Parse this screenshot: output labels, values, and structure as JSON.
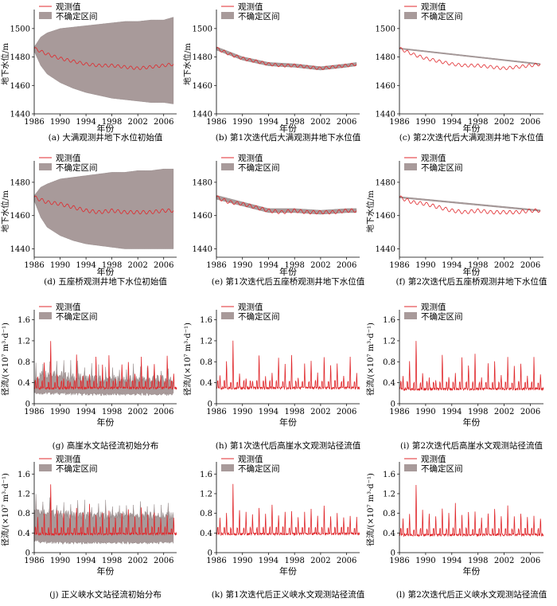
{
  "figure": {
    "legend_observed": "观测值",
    "legend_band": "不确定区间",
    "xlabel": "年份",
    "colors": {
      "observed": "#e0282c",
      "band": "#a89a9a",
      "axis": "#000000"
    }
  },
  "chart_data": [
    {
      "type": "line",
      "panel": "a",
      "caption": "(a) 大满观测井地下水位初始值",
      "ylabel": "地下水位/m",
      "xlim": [
        1986,
        2008
      ],
      "ylim": [
        1440,
        1510
      ],
      "xticks": [
        "1986",
        "1990",
        "1994",
        "1998",
        "2002",
        "2006"
      ],
      "yticks": [
        "1440",
        "1460",
        "1480",
        "1500"
      ],
      "series": [
        {
          "name": "观测值",
          "x": [
            1986,
            1988,
            1990,
            1992,
            1994,
            1996,
            1998,
            2000,
            2002,
            2004,
            2006,
            2007.5
          ],
          "values": [
            1486,
            1482,
            1479,
            1477,
            1475,
            1474,
            1474,
            1473,
            1472,
            1473,
            1474,
            1475
          ]
        },
        {
          "name": "不确定区间",
          "x": [
            1986,
            1987,
            1988,
            1990,
            1992,
            1994,
            1996,
            1998,
            2000,
            2002,
            2004,
            2006,
            2007.5
          ],
          "lower": [
            1484,
            1474,
            1468,
            1462,
            1458,
            1455,
            1453,
            1451,
            1450,
            1449,
            1448,
            1448,
            1447
          ],
          "upper": [
            1487,
            1494,
            1497,
            1500,
            1501,
            1502,
            1503,
            1504,
            1505,
            1505,
            1506,
            1506,
            1508
          ]
        }
      ]
    },
    {
      "type": "line",
      "panel": "b",
      "caption": "(b) 第1次迭代后大满观测井地下水位值",
      "ylabel": "地下水位/m",
      "xlim": [
        1986,
        2008
      ],
      "ylim": [
        1440,
        1510
      ],
      "xticks": [
        "1986",
        "1990",
        "1994",
        "1998",
        "2002",
        "2006"
      ],
      "yticks": [
        "1440",
        "1460",
        "1480",
        "1500"
      ],
      "series": [
        {
          "name": "观测值",
          "x": [
            1986,
            1988,
            1990,
            1992,
            1994,
            1996,
            1998,
            2000,
            2002,
            2004,
            2006,
            2007.5
          ],
          "values": [
            1486,
            1482,
            1479,
            1477,
            1475,
            1474,
            1474,
            1473,
            1472,
            1473,
            1474,
            1475
          ]
        },
        {
          "name": "不确定区间",
          "x": [
            1986,
            1990,
            1994,
            1998,
            2002,
            2006,
            2007.5
          ],
          "lower": [
            1484.8,
            1477.8,
            1473.8,
            1472.8,
            1470.8,
            1472.8,
            1473.8
          ],
          "upper": [
            1487.2,
            1480.2,
            1476.2,
            1475.2,
            1473.2,
            1475.2,
            1476.2
          ]
        }
      ]
    },
    {
      "type": "line",
      "panel": "c",
      "caption": "(c) 第2次迭代后大满观测井地下水位值",
      "ylabel": "",
      "xlim": [
        1986,
        2008
      ],
      "ylim": [
        1440,
        1510
      ],
      "xticks": [
        "1986",
        "1990",
        "1994",
        "1998",
        "2002",
        "2006"
      ],
      "yticks": [
        "1440",
        "1460",
        "1480",
        "1500"
      ],
      "series": [
        {
          "name": "观测值",
          "x": [
            1986,
            1988,
            1990,
            1992,
            1994,
            1996,
            1998,
            2000,
            2002,
            2004,
            2006,
            2007.5
          ],
          "values": [
            1486,
            1482,
            1479,
            1477,
            1475,
            1474,
            1474,
            1473,
            1472,
            1473,
            1474,
            1475
          ]
        },
        {
          "name": "不确定区间",
          "x": [
            1986,
            2007.5
          ],
          "lower": [
            1485.6,
            1474.6
          ],
          "upper": [
            1486.4,
            1475.4
          ]
        }
      ]
    },
    {
      "type": "line",
      "panel": "d",
      "caption": "(d) 五座桥观测井地下水位初始值",
      "ylabel": "地下水位/m",
      "xlim": [
        1986,
        2008
      ],
      "ylim": [
        1435,
        1490
      ],
      "xticks": [
        "1986",
        "1990",
        "1994",
        "1998",
        "2002",
        "2006"
      ],
      "yticks": [
        "1440",
        "1460",
        "1480"
      ],
      "series": [
        {
          "name": "观测值",
          "x": [
            1986,
            1988,
            1990,
            1992,
            1994,
            1996,
            1998,
            2000,
            2002,
            2004,
            2006,
            2007.5
          ],
          "values": [
            1471,
            1468,
            1467,
            1465,
            1463,
            1462,
            1463,
            1462,
            1462,
            1462,
            1463,
            1463
          ]
        },
        {
          "name": "不确定区间",
          "x": [
            1986,
            1987,
            1988,
            1990,
            1992,
            1994,
            1996,
            1998,
            2000,
            2002,
            2004,
            2006,
            2007.5
          ],
          "lower": [
            1469,
            1459,
            1453,
            1448,
            1445,
            1443,
            1442,
            1441,
            1440,
            1440,
            1440,
            1440,
            1440
          ],
          "upper": [
            1472,
            1477,
            1479,
            1482,
            1483,
            1484,
            1485,
            1486,
            1486,
            1487,
            1487,
            1488,
            1488
          ]
        }
      ]
    },
    {
      "type": "line",
      "panel": "e",
      "caption": "(e) 第1次迭代后五座桥观测井地下水位值",
      "ylabel": "",
      "xlim": [
        1986,
        2008
      ],
      "ylim": [
        1435,
        1490
      ],
      "xticks": [
        "1986",
        "1990",
        "1994",
        "1998",
        "2002",
        "2006"
      ],
      "yticks": [
        "1440",
        "1460",
        "1480"
      ],
      "series": [
        {
          "name": "观测值",
          "x": [
            1986,
            1988,
            1990,
            1992,
            1994,
            1996,
            1998,
            2000,
            2002,
            2004,
            2006,
            2007.5
          ],
          "values": [
            1471,
            1468,
            1467,
            1465,
            1463,
            1462,
            1463,
            1462,
            1462,
            1462,
            1463,
            1463
          ]
        },
        {
          "name": "不确定区间",
          "x": [
            1986,
            1990,
            1994,
            1998,
            2002,
            2006,
            2007.5
          ],
          "lower": [
            1469.8,
            1465.8,
            1461.8,
            1461.8,
            1460.8,
            1461.8,
            1461.8
          ],
          "upper": [
            1472.2,
            1468.2,
            1464.2,
            1464.2,
            1463.2,
            1464.2,
            1464.2
          ]
        }
      ]
    },
    {
      "type": "line",
      "panel": "f",
      "caption": "(f) 第2次迭代后五座桥观测井地下水位值",
      "ylabel": "地下水位/m",
      "xlim": [
        1986,
        2008
      ],
      "ylim": [
        1435,
        1490
      ],
      "xticks": [
        "1986",
        "1990",
        "1994",
        "1998",
        "2002",
        "2006"
      ],
      "yticks": [
        "1440",
        "1460",
        "1480"
      ],
      "series": [
        {
          "name": "观测值",
          "x": [
            1986,
            1988,
            1990,
            1992,
            1994,
            1996,
            1998,
            2000,
            2002,
            2004,
            2006,
            2007.5
          ],
          "values": [
            1471,
            1468,
            1467,
            1465,
            1463,
            1462,
            1463,
            1462,
            1462,
            1462,
            1463,
            1463
          ]
        },
        {
          "name": "不确定区间",
          "x": [
            1986,
            2007.5
          ],
          "lower": [
            1470.6,
            1462.6
          ],
          "upper": [
            1471.4,
            1463.4
          ]
        }
      ]
    },
    {
      "type": "line",
      "panel": "g",
      "caption": "(g) 高崖水文站径流初始分布",
      "ylabel": "径流/(×10⁷ m³·d⁻¹)",
      "xlim": [
        1986,
        2008
      ],
      "ylim": [
        0,
        1.7
      ],
      "xticks": [
        "1986",
        "1990",
        "1994",
        "1998",
        "2002",
        "2006"
      ],
      "yticks": [
        "0",
        "0.4",
        "0.8",
        "1.2",
        "1.6"
      ],
      "series": [
        {
          "name": "观测值",
          "peaks": [
            0.55,
            0.85,
            1.3,
            0.6,
            0.5,
            0.45,
            1.0,
            0.55,
            0.6,
            0.95,
            0.8,
            1.0,
            0.5,
            0.8,
            0.85,
            0.6,
            0.95,
            0.75,
            0.8,
            0.55,
            0.95,
            0.6
          ],
          "base": 0.3
        },
        {
          "name": "不确定区间",
          "x": [
            1986,
            1987,
            1989,
            1990,
            1992,
            1994,
            1996,
            2000,
            2004,
            2007.5
          ],
          "lower": [
            0.22,
            0.2,
            0.2,
            0.2,
            0.19,
            0.18,
            0.18,
            0.18,
            0.18,
            0.18
          ],
          "upper": [
            0.45,
            0.55,
            0.6,
            0.55,
            0.5,
            0.48,
            0.46,
            0.46,
            0.46,
            0.46
          ]
        }
      ]
    },
    {
      "type": "line",
      "panel": "h",
      "caption": "(h) 第1次迭代后高崖水文观测站径流值",
      "ylabel": "径流/(×10⁷ m³·d⁻¹)",
      "xlim": [
        1986,
        2008
      ],
      "ylim": [
        0,
        1.7
      ],
      "xticks": [
        "1986",
        "1990",
        "1994",
        "1998",
        "2002",
        "2006"
      ],
      "yticks": [
        "0",
        "0.4",
        "0.8",
        "1.2",
        "1.6"
      ],
      "series": [
        {
          "name": "观测值",
          "peaks": [
            0.55,
            0.85,
            1.3,
            0.6,
            0.5,
            0.45,
            1.0,
            0.55,
            0.6,
            0.95,
            0.8,
            1.0,
            0.5,
            0.8,
            0.85,
            0.6,
            0.95,
            0.75,
            0.8,
            0.55,
            0.95,
            0.6
          ],
          "base": 0.3
        }
      ]
    },
    {
      "type": "line",
      "panel": "i",
      "caption": "(i) 第2次迭代后高崖水文观测站径流值",
      "ylabel": "径流/(×10⁷ m³·d⁻¹)",
      "xlim": [
        1986,
        2008
      ],
      "ylim": [
        0,
        1.7
      ],
      "xticks": [
        "1986",
        "1990",
        "1994",
        "1998",
        "2002",
        "2006"
      ],
      "yticks": [
        "0",
        "0.4",
        "0.8",
        "1.2",
        "1.6"
      ],
      "series": [
        {
          "name": "观测值",
          "peaks": [
            0.55,
            0.85,
            1.3,
            0.6,
            0.5,
            0.45,
            1.0,
            0.55,
            0.6,
            0.95,
            0.8,
            1.0,
            0.5,
            0.8,
            0.85,
            0.6,
            0.95,
            0.75,
            0.8,
            0.55,
            0.95,
            0.6
          ],
          "base": 0.28
        }
      ]
    },
    {
      "type": "line",
      "panel": "j",
      "caption": "(j) 正义峡水文站径流初始分布",
      "ylabel": "径流/(×10⁷ m³·d⁻¹)",
      "xlim": [
        1986,
        2008
      ],
      "ylim": [
        0,
        1.75
      ],
      "xticks": [
        "1986",
        "1990",
        "1994",
        "1998",
        "2002",
        "2006"
      ],
      "yticks": [
        "0",
        "0.4",
        "0.8",
        "1.2",
        "1.6"
      ],
      "series": [
        {
          "name": "观测值",
          "peaks": [
            0.75,
            0.85,
            1.5,
            0.9,
            0.85,
            0.8,
            0.95,
            0.85,
            1.05,
            0.8,
            0.85,
            0.9,
            0.75,
            0.85,
            0.95,
            0.8,
            1.0,
            0.8,
            0.85,
            0.75,
            0.8,
            0.75
          ],
          "base": 0.38
        },
        {
          "name": "不确定区间",
          "x": [
            1986,
            1987,
            1990,
            1994,
            1998,
            2002,
            2007.5
          ],
          "lower": [
            0.25,
            0.22,
            0.2,
            0.2,
            0.2,
            0.2,
            0.2
          ],
          "upper": [
            0.95,
            0.85,
            0.78,
            0.75,
            0.75,
            0.75,
            0.75
          ]
        }
      ]
    },
    {
      "type": "line",
      "panel": "k",
      "caption": "(k) 第1次迭代后正义峡水文观测站径流值",
      "ylabel": "",
      "xlim": [
        1986,
        2008
      ],
      "ylim": [
        0,
        1.75
      ],
      "xticks": [
        "1986",
        "1990",
        "1994",
        "1998",
        "2002",
        "2006"
      ],
      "yticks": [
        "0",
        "0.4",
        "0.8",
        "1.2",
        "1.6"
      ],
      "series": [
        {
          "name": "观测值",
          "peaks": [
            0.75,
            0.85,
            1.5,
            0.9,
            0.85,
            0.8,
            0.95,
            0.85,
            1.05,
            0.8,
            0.85,
            0.9,
            0.75,
            0.85,
            0.95,
            0.8,
            1.0,
            0.8,
            0.85,
            0.75,
            0.8,
            0.75
          ],
          "base": 0.38
        }
      ]
    },
    {
      "type": "line",
      "panel": "l",
      "caption": "(l) 第2次迭代后正义峡水文观测站径流值",
      "ylabel": "径流/(×10⁷ m³·d⁻¹)",
      "xlim": [
        1986,
        2008
      ],
      "ylim": [
        0,
        1.75
      ],
      "xticks": [
        "1986",
        "1990",
        "1994",
        "1998",
        "2002",
        "2006"
      ],
      "yticks": [
        "0",
        "0.4",
        "0.8",
        "1.2",
        "1.6"
      ],
      "series": [
        {
          "name": "观测值",
          "peaks": [
            0.75,
            0.85,
            1.5,
            0.9,
            0.85,
            0.8,
            0.95,
            0.85,
            1.05,
            0.8,
            0.85,
            0.9,
            0.75,
            0.85,
            0.95,
            0.8,
            1.0,
            0.8,
            0.85,
            0.75,
            0.8,
            0.75
          ],
          "base": 0.36
        }
      ]
    }
  ]
}
